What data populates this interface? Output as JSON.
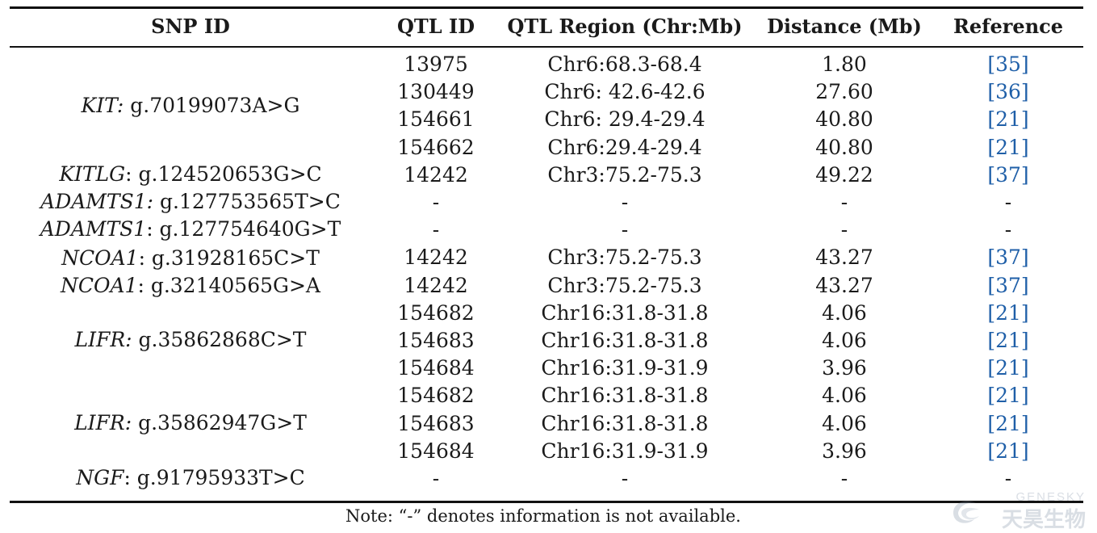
{
  "header": {
    "snp_id": "SNP ID",
    "qtl_id": "QTL ID",
    "qtl_region": "QTL Region (Chr:Mb)",
    "distance": "Distance (Mb)",
    "reference": "Reference"
  },
  "snp_groups": [
    {
      "gene": "KIT:",
      "variant": " g.70199073A>G"
    },
    {
      "gene": "KITLG",
      "variant": ": g.124520653G>C"
    },
    {
      "gene": "ADAMTS1:",
      "variant": " g.127753565T>C"
    },
    {
      "gene": "ADAMTS1",
      "variant": ": g.127754640G>T"
    },
    {
      "gene": "NCOA1",
      "variant": ": g.31928165C>T"
    },
    {
      "gene": "NCOA1",
      "variant": ": g.32140565G>A"
    },
    {
      "gene": "LIFR:",
      "variant": " g.35862868C>T"
    },
    {
      "gene": "LIFR:",
      "variant": " g.35862947G>T"
    },
    {
      "gene": "NGF",
      "variant": ": g.91795933T>C"
    }
  ],
  "rows": [
    {
      "qtl_id": "13975",
      "region": "Chr6:68.3-68.4",
      "distance": "1.80",
      "ref": "[35]"
    },
    {
      "qtl_id": "130449",
      "region": "Chr6: 42.6-42.6",
      "distance": "27.60",
      "ref": "[36]"
    },
    {
      "qtl_id": "154661",
      "region": "Chr6: 29.4-29.4",
      "distance": "40.80",
      "ref": "[21]"
    },
    {
      "qtl_id": "154662",
      "region": "Chr6:29.4-29.4",
      "distance": "40.80",
      "ref": "[21]"
    },
    {
      "qtl_id": "14242",
      "region": "Chr3:75.2-75.3",
      "distance": "49.22",
      "ref": "[37]"
    },
    {
      "qtl_id": "-",
      "region": "-",
      "distance": "-",
      "ref": "-"
    },
    {
      "qtl_id": "-",
      "region": "-",
      "distance": "-",
      "ref": "-"
    },
    {
      "qtl_id": "14242",
      "region": "Chr3:75.2-75.3",
      "distance": "43.27",
      "ref": "[37]"
    },
    {
      "qtl_id": "14242",
      "region": "Chr3:75.2-75.3",
      "distance": "43.27",
      "ref": "[37]"
    },
    {
      "qtl_id": "154682",
      "region": "Chr16:31.8-31.8",
      "distance": "4.06",
      "ref": "[21]"
    },
    {
      "qtl_id": "154683",
      "region": "Chr16:31.8-31.8",
      "distance": "4.06",
      "ref": "[21]"
    },
    {
      "qtl_id": "154684",
      "region": "Chr16:31.9-31.9",
      "distance": "3.96",
      "ref": "[21]"
    },
    {
      "qtl_id": "154682",
      "region": "Chr16:31.8-31.8",
      "distance": "4.06",
      "ref": "[21]"
    },
    {
      "qtl_id": "154683",
      "region": "Chr16:31.8-31.8",
      "distance": "4.06",
      "ref": "[21]"
    },
    {
      "qtl_id": "154684",
      "region": "Chr16:31.9-31.9",
      "distance": "3.96",
      "ref": "[21]"
    },
    {
      "qtl_id": "-",
      "region": "-",
      "distance": "-",
      "ref": "-"
    }
  ],
  "note": "Note: “-” denotes information is not available.",
  "watermark": {
    "en": "GENESKY",
    "cn": "天昊生物"
  },
  "colors": {
    "reference_link": "#1f5fa8",
    "rule": "#111111"
  }
}
